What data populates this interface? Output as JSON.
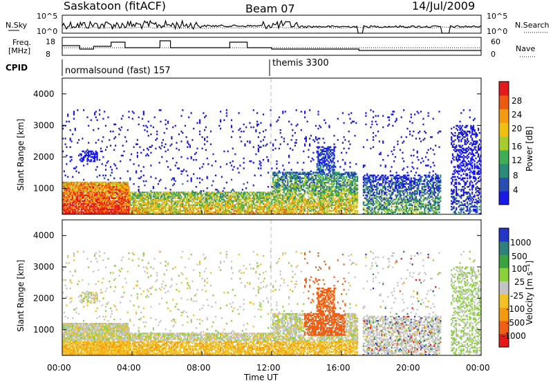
{
  "header": {
    "station": "Saskatoon (fitACF)",
    "beam": "Beam 07",
    "date": "14/Jul/2009"
  },
  "top_panels": {
    "nsky_label": "N.Sky",
    "nsky_ticks": [
      "10^5",
      "10^0"
    ],
    "nsearch_label": "N.Search",
    "nsearch_ticks": [
      "10^5",
      "10^0"
    ],
    "freq_label_1": "Freq.",
    "freq_label_2": "[MHz]",
    "freq_ticks": [
      "18",
      "8"
    ],
    "nave_label": "Nave",
    "nave_ticks": [
      "60",
      "0"
    ],
    "cpid_label": "CPID",
    "cpid_segments": [
      "normalsound (fast) 157",
      "themis 3300"
    ]
  },
  "x_axis": {
    "label": "Time UT",
    "ticks": [
      "00:00",
      "04:00",
      "08:00",
      "12:00",
      "16:00",
      "20:00",
      "00:00"
    ]
  },
  "power_panel": {
    "ylabel": "Slant Range [km]",
    "yticks": [
      "4000",
      "3000",
      "2000",
      "1000"
    ],
    "colorbar_label": "Power [dB]",
    "colorbar_ticks": [
      "28",
      "24",
      "20",
      "16",
      "12",
      "8",
      "4"
    ],
    "colors": [
      "#1a1ae6",
      "#2a4fb4",
      "#2c8a7a",
      "#3fae55",
      "#a8cc2c",
      "#f0c010",
      "#f59a10",
      "#ee5a12",
      "#e41a1a"
    ]
  },
  "velocity_panel": {
    "ylabel": "Slant Range [km]",
    "yticks": [
      "4000",
      "3000",
      "2000",
      "1000"
    ],
    "colorbar_label": "Velocity [m s⁻¹]",
    "colorbar_ticks": [
      "1000",
      "500",
      "100",
      "25",
      "-25",
      "-100",
      "-500",
      "-1000"
    ],
    "colors": [
      "#2436c8",
      "#2f7f7a",
      "#3aa23f",
      "#8bd13a",
      "#c4c4c4",
      "#f2c224",
      "#f59a10",
      "#f06014",
      "#e41a1a"
    ]
  },
  "chart_data": [
    {
      "type": "heatmap",
      "title": "Power",
      "xlabel": "Time UT",
      "ylabel": "Slant Range [km]",
      "x_range_hours": [
        0,
        24
      ],
      "ylim": [
        180,
        4500
      ],
      "colorbar": {
        "label": "Power [dB]",
        "range": [
          0,
          30
        ]
      },
      "regions": [
        {
          "t": [
            0.0,
            3.8
          ],
          "r": [
            200,
            1200
          ],
          "level": "high"
        },
        {
          "t": [
            1.0,
            2.0
          ],
          "r": [
            1800,
            2200
          ],
          "level": "low"
        },
        {
          "t": [
            4.0,
            12.0
          ],
          "r": [
            200,
            900
          ],
          "level": "medium"
        },
        {
          "t": [
            12.0,
            17.0
          ],
          "r": [
            200,
            1500
          ],
          "level": "medium"
        },
        {
          "t": [
            14.5,
            15.6
          ],
          "r": [
            1500,
            2300
          ],
          "level": "medium"
        },
        {
          "t": [
            17.2,
            21.8
          ],
          "r": [
            200,
            1400
          ],
          "level": "medium"
        },
        {
          "t": [
            22.2,
            24.0
          ],
          "r": [
            300,
            3000
          ],
          "level": "low"
        }
      ]
    },
    {
      "type": "heatmap",
      "title": "Velocity",
      "xlabel": "Time UT",
      "ylabel": "Slant Range [km]",
      "x_range_hours": [
        0,
        24
      ],
      "ylim": [
        180,
        4500
      ],
      "colorbar": {
        "label": "Velocity [m s⁻¹]",
        "range": [
          -1000,
          1000
        ]
      },
      "regions": [
        {
          "t": [
            0.0,
            12.0
          ],
          "r": [
            200,
            1300
          ],
          "level": "-100"
        },
        {
          "t": [
            12.0,
            17.0
          ],
          "r": [
            200,
            1500
          ],
          "level": "mixed"
        },
        {
          "t": [
            13.8,
            16.2
          ],
          "r": [
            800,
            2300
          ],
          "level": "-500"
        },
        {
          "t": [
            17.2,
            21.8
          ],
          "r": [
            300,
            1600
          ],
          "level": "25"
        },
        {
          "t": [
            22.2,
            24.0
          ],
          "r": [
            500,
            2800
          ],
          "level": "100"
        }
      ]
    }
  ]
}
